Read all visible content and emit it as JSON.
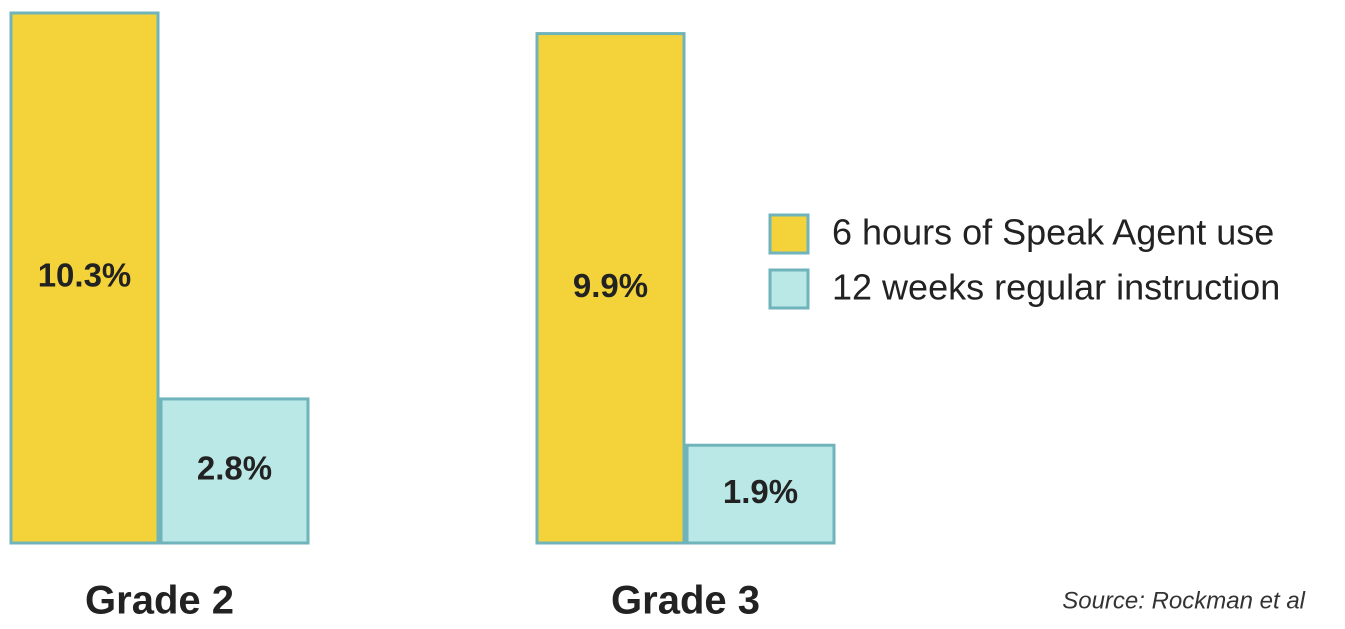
{
  "chart_data": {
    "type": "bar",
    "categories": [
      "Grade 2",
      "Grade 3"
    ],
    "series": [
      {
        "name": "6 hours of Speak Agent use",
        "color": "#f4d33a",
        "values": [
          10.3,
          9.9
        ],
        "value_labels": [
          "10.3%",
          "9.9%"
        ]
      },
      {
        "name": "12 weeks regular instruction",
        "color": "#b9e8e6",
        "values": [
          2.8,
          1.9
        ],
        "value_labels": [
          "2.8%",
          "1.9%"
        ]
      }
    ],
    "edge_color": "#6fb3bb",
    "legend": "right",
    "source": "Source: Rockman et al"
  }
}
